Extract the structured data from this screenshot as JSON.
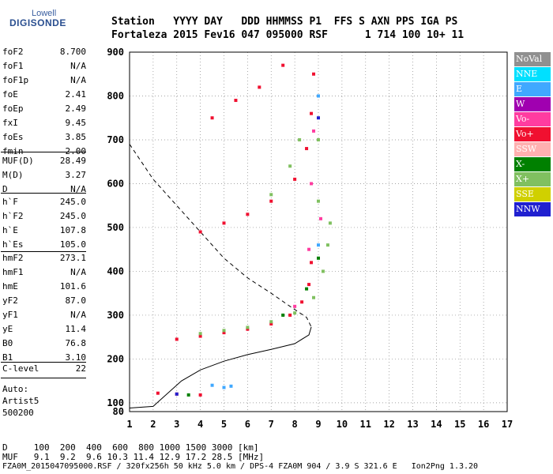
{
  "logo": {
    "line1": "Lowell",
    "line2": "DIGISONDE"
  },
  "header": {
    "line1": "Station   YYYY DAY   DDD HHMMSS P1  FFS S AXN PPS IGA PS",
    "line2": "Fortaleza 2015 Fev16 047 095000 RSF      1 714 100 10+ 11"
  },
  "params_group1": [
    {
      "name": "foF2",
      "value": "8.700"
    },
    {
      "name": "foF1",
      "value": "N/A"
    },
    {
      "name": "foF1p",
      "value": "N/A"
    },
    {
      "name": "foE",
      "value": "2.41"
    },
    {
      "name": "foEp",
      "value": "2.49"
    },
    {
      "name": "fxI",
      "value": "9.45"
    },
    {
      "name": "foEs",
      "value": "3.85"
    },
    {
      "name": "fmin",
      "value": "2.00"
    }
  ],
  "params_group2": [
    {
      "name": "MUF(D)",
      "value": "28.49"
    },
    {
      "name": "M(D)",
      "value": "3.27"
    },
    {
      "name": "D",
      "value": "N/A"
    }
  ],
  "params_group3": [
    {
      "name": "h`F",
      "value": "245.0"
    },
    {
      "name": "h`F2",
      "value": "245.0"
    },
    {
      "name": "h`E",
      "value": "107.8"
    },
    {
      "name": "h`Es",
      "value": "105.0"
    }
  ],
  "params_group4": [
    {
      "name": "hmF2",
      "value": "273.1"
    },
    {
      "name": "hmF1",
      "value": "N/A"
    },
    {
      "name": "hmE",
      "value": "101.6"
    },
    {
      "name": "yF2",
      "value": "87.0"
    },
    {
      "name": "yF1",
      "value": "N/A"
    },
    {
      "name": "yE",
      "value": "11.4"
    },
    {
      "name": "B0",
      "value": "76.8"
    },
    {
      "name": "B1",
      "value": "3.10"
    }
  ],
  "clevel": {
    "name": "C-level",
    "value": "22"
  },
  "autoscale": {
    "line1": "Auto:",
    "line2": "Artist5",
    "line3": "500200"
  },
  "footer": {
    "line1": "D     100  200  400  600  800 1000 1500 3000 [km]",
    "line2": "MUF   9.1  9.2  9.6 10.3 11.4 12.9 17.2 28.5 [MHz]",
    "line3": "FZA0M_2015047095000.RSF / 320fx256h 50 kHz 5.0 km / DPS-4 FZA0M 904 / 3.9 S 321.6 E   Ion2Png 1.3.20"
  },
  "legend": [
    {
      "label": "NoVal",
      "color": "#909090"
    },
    {
      "label": "NNE",
      "color": "#00e0ff"
    },
    {
      "label": "E",
      "color": "#40a8ff"
    },
    {
      "label": "W",
      "color": "#a000b0"
    },
    {
      "label": "Vo-",
      "color": "#ff3ca0"
    },
    {
      "label": "Vo+",
      "color": "#f01030"
    },
    {
      "label": "SSW",
      "color": "#ffb0b0"
    },
    {
      "label": "X-",
      "color": "#008000"
    },
    {
      "label": "X+",
      "color": "#80c060"
    },
    {
      "label": "SSE",
      "color": "#d0d000"
    },
    {
      "label": "NNW",
      "color": "#2020d0"
    }
  ],
  "chart_data": {
    "type": "scatter",
    "xlabel": "",
    "ylabel": "",
    "xlim": [
      1,
      17
    ],
    "ylim": [
      80,
      900
    ],
    "x_ticks": [
      1,
      2,
      3,
      4,
      5,
      6,
      7,
      8,
      9,
      10,
      11,
      12,
      13,
      14,
      15,
      16,
      17
    ],
    "y_ticks": [
      100,
      200,
      300,
      400,
      500,
      600,
      700,
      800,
      900
    ],
    "series": [
      {
        "name": "Vo+",
        "color": "#f01030",
        "points": [
          [
            3.0,
            245
          ],
          [
            4.0,
            252
          ],
          [
            5.0,
            260
          ],
          [
            6.0,
            268
          ],
          [
            7.0,
            280
          ],
          [
            7.8,
            300
          ],
          [
            8.3,
            330
          ],
          [
            8.6,
            370
          ],
          [
            8.7,
            420
          ],
          [
            4.0,
            490
          ],
          [
            5.0,
            510
          ],
          [
            6.0,
            530
          ],
          [
            7.0,
            560
          ],
          [
            8.0,
            610
          ],
          [
            8.5,
            680
          ],
          [
            8.7,
            760
          ],
          [
            8.8,
            850
          ],
          [
            4.5,
            750
          ],
          [
            5.5,
            790
          ],
          [
            6.5,
            820
          ],
          [
            7.5,
            870
          ],
          [
            2.2,
            122
          ],
          [
            3.0,
            120
          ],
          [
            4.0,
            118
          ]
        ]
      },
      {
        "name": "X+",
        "color": "#80c060",
        "points": [
          [
            4.0,
            258
          ],
          [
            5.0,
            265
          ],
          [
            6.0,
            272
          ],
          [
            7.0,
            285
          ],
          [
            8.0,
            305
          ],
          [
            8.8,
            340
          ],
          [
            9.2,
            400
          ],
          [
            9.4,
            460
          ],
          [
            9.5,
            510
          ],
          [
            9.0,
            560
          ],
          [
            9.0,
            700
          ],
          [
            9.0,
            800
          ],
          [
            7.0,
            575
          ],
          [
            7.8,
            640
          ],
          [
            8.2,
            700
          ]
        ]
      },
      {
        "name": "Vo-",
        "color": "#ff3ca0",
        "points": [
          [
            8.0,
            320
          ],
          [
            8.6,
            450
          ],
          [
            9.1,
            520
          ],
          [
            8.7,
            600
          ],
          [
            8.8,
            720
          ]
        ]
      },
      {
        "name": "E",
        "color": "#40a8ff",
        "points": [
          [
            4.5,
            140
          ],
          [
            5.0,
            135
          ],
          [
            5.3,
            138
          ],
          [
            9.0,
            460
          ],
          [
            9.0,
            800
          ]
        ]
      },
      {
        "name": "X-",
        "color": "#008000",
        "points": [
          [
            7.5,
            300
          ],
          [
            8.5,
            360
          ],
          [
            9.0,
            430
          ],
          [
            3.5,
            118
          ]
        ]
      },
      {
        "name": "NNW",
        "color": "#2020d0",
        "points": [
          [
            9.0,
            750
          ],
          [
            3.0,
            120
          ]
        ]
      }
    ],
    "profile_solid": [
      [
        1.0,
        88
      ],
      [
        2.0,
        92
      ],
      [
        3.2,
        150
      ],
      [
        4.0,
        175
      ],
      [
        5.0,
        195
      ],
      [
        6.0,
        210
      ],
      [
        7.0,
        222
      ],
      [
        8.0,
        235
      ],
      [
        8.6,
        255
      ],
      [
        8.7,
        273
      ]
    ],
    "profile_dashed": [
      [
        1.0,
        690
      ],
      [
        2.0,
        610
      ],
      [
        3.0,
        550
      ],
      [
        4.0,
        490
      ],
      [
        5.0,
        430
      ],
      [
        6.0,
        385
      ],
      [
        7.0,
        350
      ],
      [
        7.8,
        320
      ],
      [
        8.5,
        295
      ],
      [
        8.7,
        273
      ]
    ]
  }
}
